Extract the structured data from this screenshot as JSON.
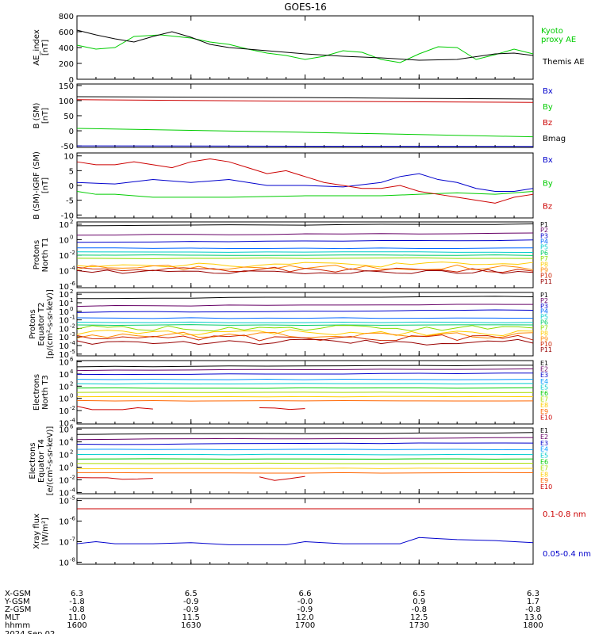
{
  "title": "GOES-16",
  "colors": {
    "black": "#000000",
    "blue": "#0000cc",
    "green": "#00cc00",
    "red": "#cc0000",
    "P": [
      "#000000",
      "#660066",
      "#0000cc",
      "#0066ff",
      "#00cccc",
      "#00cc66",
      "#88dd00",
      "#ffcc00",
      "#ff8800",
      "#cc2200",
      "#990000"
    ],
    "E": [
      "#000000",
      "#660066",
      "#0000cc",
      "#0099ff",
      "#00cccc",
      "#00cc00",
      "#aadd00",
      "#ffcc00",
      "#ff6600",
      "#cc0000",
      "#880000"
    ]
  },
  "x_axis": {
    "tick_hhmm": [
      "1600",
      "1630",
      "1700",
      "1730",
      "1800"
    ],
    "rows": [
      {
        "label": "X-GSM",
        "values": [
          "6.3",
          "6.5",
          "6.6",
          "6.5",
          "6.3"
        ]
      },
      {
        "label": "Y-GSM",
        "values": [
          "-1.8",
          "-0.9",
          "-0.0",
          "0.9",
          "1.7"
        ]
      },
      {
        "label": "Z-GSM",
        "values": [
          "-0.8",
          "-0.9",
          "-0.9",
          "-0.8",
          "-0.8"
        ]
      },
      {
        "label": "MLT",
        "values": [
          "11.0",
          "11.5",
          "12.0",
          "12.5",
          "13.0"
        ]
      },
      {
        "label": "hhmm",
        "values": [
          "1600",
          "1630",
          "1700",
          "1730",
          "1800"
        ]
      }
    ],
    "date": "2024 Sep 02"
  },
  "chart_data": [
    {
      "type": "line",
      "id": "ae",
      "ylabel": "AE_index\n[nT]",
      "ylim": [
        0,
        800
      ],
      "yticks": [
        "800",
        "600",
        "400",
        "200",
        "0"
      ],
      "ytick_vals": [
        800,
        600,
        400,
        200,
        0
      ],
      "series": [
        {
          "name": "Kyoto\nproxy AE",
          "color": "#00cc00",
          "x": [
            0,
            5,
            10,
            15,
            22,
            30,
            35,
            40,
            45,
            50,
            55,
            60,
            65,
            70,
            75,
            80,
            85,
            90,
            95,
            100,
            105,
            110,
            115,
            120
          ],
          "y": [
            430,
            380,
            400,
            540,
            560,
            520,
            470,
            440,
            380,
            330,
            300,
            250,
            290,
            360,
            340,
            250,
            210,
            320,
            410,
            400,
            250,
            310,
            380,
            320
          ]
        },
        {
          "name": "Themis AE",
          "color": "#000000",
          "x": [
            0,
            5,
            10,
            15,
            20,
            25,
            30,
            35,
            40,
            50,
            60,
            70,
            80,
            90,
            100,
            110,
            115,
            120
          ],
          "y": [
            620,
            560,
            510,
            470,
            540,
            600,
            530,
            440,
            400,
            360,
            320,
            290,
            270,
            240,
            250,
            320,
            330,
            300
          ]
        }
      ]
    },
    {
      "type": "line",
      "id": "bsm",
      "ylabel": "B (SM)\n[nT]",
      "ylim": [
        -55,
        155
      ],
      "yticks": [
        "150",
        "100",
        "50",
        "0",
        "-50"
      ],
      "ytick_vals": [
        150,
        100,
        50,
        0,
        -50
      ],
      "series": [
        {
          "name": "Bx",
          "color": "#0000cc",
          "x": [
            0,
            120
          ],
          "y": [
            -50,
            -52
          ]
        },
        {
          "name": "By",
          "color": "#00cc00",
          "x": [
            0,
            60,
            120
          ],
          "y": [
            8,
            -5,
            -20
          ]
        },
        {
          "name": "Bz",
          "color": "#cc0000",
          "x": [
            0,
            60,
            120
          ],
          "y": [
            103,
            98,
            94
          ]
        },
        {
          "name": "Bmag",
          "color": "#000000",
          "x": [
            0,
            60,
            120
          ],
          "y": [
            113,
            110,
            105
          ]
        }
      ]
    },
    {
      "type": "line",
      "id": "bigrf",
      "ylabel": "B (SM)-IGRF (SM)\n[nT]",
      "ylim": [
        -11,
        11
      ],
      "yticks": [
        "10",
        "5",
        "0",
        "-5",
        "-10"
      ],
      "ytick_vals": [
        10,
        5,
        0,
        -5,
        -10
      ],
      "series": [
        {
          "name": "Bx",
          "color": "#0000cc",
          "x": [
            0,
            10,
            20,
            30,
            40,
            50,
            60,
            70,
            80,
            85,
            90,
            95,
            100,
            105,
            110,
            115,
            120
          ],
          "y": [
            1,
            0.5,
            2,
            1,
            2,
            0,
            0,
            -0.5,
            1,
            3,
            4,
            2,
            1,
            -1,
            -2,
            -2,
            -1
          ]
        },
        {
          "name": "By",
          "color": "#00cc00",
          "x": [
            0,
            5,
            10,
            20,
            40,
            60,
            80,
            90,
            100,
            110,
            120
          ],
          "y": [
            -2,
            -3,
            -3,
            -4,
            -4,
            -3.5,
            -3.5,
            -3,
            -2.5,
            -3,
            -2
          ]
        },
        {
          "name": "Bz",
          "color": "#cc0000",
          "x": [
            0,
            5,
            10,
            15,
            20,
            25,
            30,
            35,
            40,
            45,
            50,
            55,
            60,
            65,
            70,
            75,
            80,
            85,
            90,
            95,
            100,
            105,
            110,
            115,
            120
          ],
          "y": [
            8,
            7,
            7,
            8,
            7,
            6,
            8,
            9,
            8,
            6,
            4,
            5,
            3,
            1,
            0,
            -1,
            -1,
            0,
            -2,
            -3,
            -4,
            -5,
            -6,
            -4,
            -3
          ]
        }
      ]
    },
    {
      "type": "line",
      "id": "pT1",
      "log": true,
      "ylabel": "Protons\nNorth T1",
      "ylim": [
        -6.2,
        2.3
      ],
      "ytick_exp": [
        2,
        0,
        -2,
        -4,
        -6
      ],
      "channel_labels": [
        "P1",
        "P2",
        "P3",
        "P4",
        "P5",
        "P6",
        "P7",
        "P8",
        "P9",
        "P10",
        "P11"
      ],
      "levels": [
        1.8,
        0.6,
        -0.3,
        -1.1,
        -1.6,
        -2.0,
        -2.4,
        -3.2,
        -3.6,
        -3.9,
        -4.2
      ],
      "noisy": [
        7,
        8,
        9,
        10
      ]
    },
    {
      "type": "line",
      "id": "pT2",
      "log": true,
      "ylabel": "Protons\nEquator T2\n[p/(cm²-s-sr-keV)]",
      "ylim": [
        -5.2,
        2.2
      ],
      "ytick_exp": [
        2,
        1,
        0,
        -1,
        -2,
        -3,
        -4,
        -5
      ],
      "channel_labels": [
        "P1",
        "P2",
        "P3",
        "P4",
        "P5",
        "P6",
        "P7",
        "P8",
        "P9",
        "P10",
        "P11"
      ],
      "levels": [
        1.5,
        0.6,
        -0.1,
        -0.8,
        -1.3,
        -1.6,
        -2.0,
        -2.5,
        -2.8,
        -3.1,
        -3.6
      ],
      "noisy": [
        6,
        7,
        8,
        9,
        10
      ]
    },
    {
      "type": "line",
      "id": "eT3",
      "log": true,
      "ylabel": "Electrons\nNorth T3",
      "ylim": [
        -4.2,
        6.2
      ],
      "ytick_exp": [
        6,
        4,
        2,
        0,
        -2,
        -4
      ],
      "channel_labels": [
        "E1",
        "E2",
        "E3",
        "E4",
        "E5",
        "E6",
        "E7",
        "E8",
        "E9",
        "E10"
      ],
      "levels": [
        5.2,
        4.6,
        3.9,
        3.1,
        2.4,
        1.7,
        1.0,
        0.3,
        -0.4,
        -1.5
      ],
      "noisy": [
        9
      ],
      "partial": 9
    },
    {
      "type": "line",
      "id": "eT4",
      "log": true,
      "ylabel": "Electrons\nEquator T4\n[e/(cm²-s-sr-keV)]",
      "ylim": [
        -4.2,
        6.2
      ],
      "ytick_exp": [
        6,
        4,
        2,
        0,
        -2,
        -4
      ],
      "channel_labels": [
        "E1",
        "E2",
        "E3",
        "E4",
        "E5",
        "E6",
        "E7",
        "E8",
        "E9",
        "E10"
      ],
      "levels": [
        5.2,
        4.4,
        3.6,
        2.8,
        2.0,
        1.3,
        0.6,
        -0.2,
        -0.9,
        -1.8
      ],
      "noisy": [
        9
      ],
      "partial": 9
    },
    {
      "type": "line",
      "id": "xray",
      "log": true,
      "ylabel": "Xray flux\n[W/m²]",
      "ylim": [
        -8.1,
        -4.9
      ],
      "ytick_exp": [
        -5,
        -6,
        -7,
        -8
      ],
      "series": [
        {
          "name": "0.1-0.8 nm",
          "color": "#cc0000",
          "x": [
            0,
            30,
            60,
            90,
            120
          ],
          "y": [
            -5.4,
            -5.4,
            -5.4,
            -5.4,
            -5.4
          ]
        },
        {
          "name": "0.05-0.4 nm",
          "color": "#0000cc",
          "x": [
            0,
            5,
            10,
            20,
            30,
            40,
            55,
            60,
            70,
            80,
            85,
            90,
            95,
            100,
            110,
            120
          ],
          "y": [
            -7.1,
            -7.0,
            -7.1,
            -7.1,
            -7.05,
            -7.15,
            -7.15,
            -7.0,
            -7.1,
            -7.1,
            -7.1,
            -6.8,
            -6.85,
            -6.9,
            -6.95,
            -7.05
          ]
        }
      ]
    }
  ]
}
